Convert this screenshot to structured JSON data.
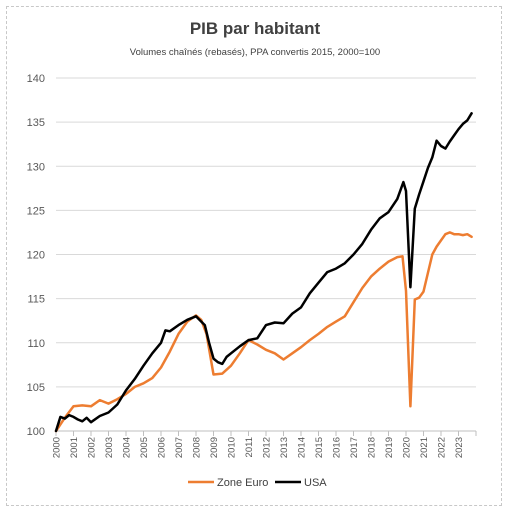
{
  "chart_data": {
    "type": "line",
    "title": "PIB par habitant",
    "subtitle": "Volumes chaînés (rebasés), PPA convertis 2015, 2000=100",
    "xlabel": "",
    "ylabel": "",
    "ylim": [
      100,
      140
    ],
    "yticks": [
      "100",
      "105",
      "110",
      "115",
      "120",
      "125",
      "130",
      "135",
      "140"
    ],
    "xlim": [
      2000,
      2024
    ],
    "xticks": [
      "2000",
      "2001",
      "2002",
      "2003",
      "2004",
      "2005",
      "2006",
      "2007",
      "2008",
      "2009",
      "2010",
      "2011",
      "2012",
      "2013",
      "2014",
      "2015",
      "2016",
      "2017",
      "2018",
      "2019",
      "2020",
      "2021",
      "2022",
      "2023"
    ],
    "grid": "horizontal",
    "legend": "bottom",
    "series": [
      {
        "name": "Zone Euro",
        "color": "#ED7D31",
        "points": [
          [
            2000.0,
            100.0
          ],
          [
            2000.5,
            101.5
          ],
          [
            2001.0,
            102.8
          ],
          [
            2001.5,
            102.9
          ],
          [
            2002.0,
            102.8
          ],
          [
            2002.5,
            103.5
          ],
          [
            2003.0,
            103.1
          ],
          [
            2003.5,
            103.6
          ],
          [
            2004.0,
            104.2
          ],
          [
            2004.5,
            105.0
          ],
          [
            2005.0,
            105.4
          ],
          [
            2005.5,
            106.0
          ],
          [
            2006.0,
            107.2
          ],
          [
            2006.5,
            109.0
          ],
          [
            2007.0,
            111.0
          ],
          [
            2007.5,
            112.4
          ],
          [
            2008.0,
            113.1
          ],
          [
            2008.3,
            112.6
          ],
          [
            2008.6,
            111.0
          ],
          [
            2009.0,
            106.4
          ],
          [
            2009.5,
            106.5
          ],
          [
            2010.0,
            107.4
          ],
          [
            2010.5,
            108.8
          ],
          [
            2011.0,
            110.3
          ],
          [
            2011.5,
            109.8
          ],
          [
            2012.0,
            109.2
          ],
          [
            2012.5,
            108.8
          ],
          [
            2013.0,
            108.1
          ],
          [
            2013.5,
            108.8
          ],
          [
            2014.0,
            109.5
          ],
          [
            2014.5,
            110.3
          ],
          [
            2015.0,
            111.0
          ],
          [
            2015.5,
            111.8
          ],
          [
            2016.0,
            112.4
          ],
          [
            2016.5,
            113.0
          ],
          [
            2017.0,
            114.6
          ],
          [
            2017.5,
            116.2
          ],
          [
            2018.0,
            117.5
          ],
          [
            2018.5,
            118.4
          ],
          [
            2019.0,
            119.2
          ],
          [
            2019.5,
            119.7
          ],
          [
            2019.8,
            119.8
          ],
          [
            2020.0,
            115.9
          ],
          [
            2020.25,
            102.8
          ],
          [
            2020.5,
            114.9
          ],
          [
            2020.75,
            115.1
          ],
          [
            2021.0,
            115.8
          ],
          [
            2021.25,
            117.9
          ],
          [
            2021.5,
            120.0
          ],
          [
            2021.75,
            120.9
          ],
          [
            2022.0,
            121.6
          ],
          [
            2022.25,
            122.3
          ],
          [
            2022.5,
            122.5
          ],
          [
            2022.75,
            122.3
          ],
          [
            2023.0,
            122.3
          ],
          [
            2023.25,
            122.2
          ],
          [
            2023.5,
            122.3
          ],
          [
            2023.75,
            122.0
          ]
        ]
      },
      {
        "name": "USA",
        "color": "#000000",
        "points": [
          [
            2000.0,
            100.0
          ],
          [
            2000.25,
            101.6
          ],
          [
            2000.5,
            101.4
          ],
          [
            2000.75,
            101.8
          ],
          [
            2001.0,
            101.6
          ],
          [
            2001.25,
            101.3
          ],
          [
            2001.5,
            101.1
          ],
          [
            2001.75,
            101.5
          ],
          [
            2002.0,
            101.0
          ],
          [
            2002.5,
            101.7
          ],
          [
            2003.0,
            102.1
          ],
          [
            2003.5,
            103.0
          ],
          [
            2004.0,
            104.6
          ],
          [
            2004.5,
            105.9
          ],
          [
            2005.0,
            107.4
          ],
          [
            2005.5,
            108.8
          ],
          [
            2006.0,
            110.0
          ],
          [
            2006.25,
            111.4
          ],
          [
            2006.5,
            111.3
          ],
          [
            2007.0,
            112.0
          ],
          [
            2007.5,
            112.6
          ],
          [
            2008.0,
            113.0
          ],
          [
            2008.25,
            112.5
          ],
          [
            2008.5,
            112.0
          ],
          [
            2008.75,
            110.0
          ],
          [
            2009.0,
            108.2
          ],
          [
            2009.25,
            107.8
          ],
          [
            2009.5,
            107.6
          ],
          [
            2009.75,
            108.4
          ],
          [
            2010.0,
            108.8
          ],
          [
            2010.5,
            109.6
          ],
          [
            2011.0,
            110.3
          ],
          [
            2011.5,
            110.5
          ],
          [
            2012.0,
            112.0
          ],
          [
            2012.5,
            112.3
          ],
          [
            2013.0,
            112.2
          ],
          [
            2013.5,
            113.3
          ],
          [
            2014.0,
            114.0
          ],
          [
            2014.5,
            115.6
          ],
          [
            2015.0,
            116.8
          ],
          [
            2015.5,
            118.0
          ],
          [
            2016.0,
            118.4
          ],
          [
            2016.5,
            119.0
          ],
          [
            2017.0,
            120.0
          ],
          [
            2017.5,
            121.2
          ],
          [
            2018.0,
            122.8
          ],
          [
            2018.5,
            124.1
          ],
          [
            2019.0,
            124.8
          ],
          [
            2019.5,
            126.3
          ],
          [
            2019.85,
            128.2
          ],
          [
            2020.0,
            127.2
          ],
          [
            2020.25,
            116.3
          ],
          [
            2020.5,
            125.2
          ],
          [
            2020.75,
            126.8
          ],
          [
            2021.0,
            128.3
          ],
          [
            2021.25,
            129.8
          ],
          [
            2021.5,
            131.0
          ],
          [
            2021.75,
            132.9
          ],
          [
            2022.0,
            132.3
          ],
          [
            2022.25,
            132.0
          ],
          [
            2022.5,
            132.8
          ],
          [
            2022.75,
            133.5
          ],
          [
            2023.0,
            134.2
          ],
          [
            2023.25,
            134.8
          ],
          [
            2023.5,
            135.2
          ],
          [
            2023.75,
            136.0
          ]
        ]
      }
    ]
  }
}
